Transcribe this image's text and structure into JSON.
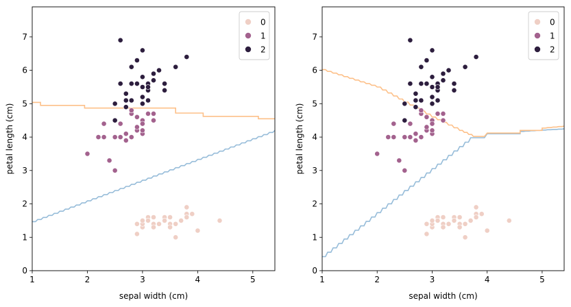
{
  "chart_data": [
    {
      "type": "scatter",
      "xlabel": "sepal width (cm)",
      "ylabel": "petal length (cm)",
      "xlim": [
        1,
        5.4
      ],
      "ylim": [
        0,
        7.9
      ],
      "xticks": [
        "1",
        "2",
        "3",
        "4",
        "5"
      ],
      "yticks": [
        "0",
        "1",
        "2",
        "3",
        "4",
        "5",
        "6",
        "7"
      ],
      "legend": {
        "placement": "top-right",
        "entries": [
          "0",
          "1",
          "2"
        ]
      },
      "colors": [
        "#efcfc5",
        "#a3628e",
        "#2d1e3e"
      ],
      "series": [
        {
          "name": "0",
          "points": [
            [
              2.9,
              1.1
            ],
            [
              2.9,
              1.4
            ],
            [
              3.0,
              1.3
            ],
            [
              3.0,
              1.4
            ],
            [
              3.0,
              1.5
            ],
            [
              3.1,
              1.6
            ],
            [
              3.1,
              1.5
            ],
            [
              3.2,
              1.6
            ],
            [
              3.2,
              1.4
            ],
            [
              3.2,
              1.3
            ],
            [
              3.3,
              1.4
            ],
            [
              3.4,
              1.6
            ],
            [
              3.4,
              1.5
            ],
            [
              3.5,
              1.6
            ],
            [
              3.5,
              1.4
            ],
            [
              3.5,
              1.3
            ],
            [
              3.6,
              1.0
            ],
            [
              3.6,
              1.4
            ],
            [
              3.7,
              1.5
            ],
            [
              3.8,
              1.9
            ],
            [
              3.8,
              1.7
            ],
            [
              3.8,
              1.6
            ],
            [
              3.9,
              1.7
            ],
            [
              4.0,
              1.2
            ],
            [
              4.4,
              1.5
            ]
          ]
        },
        {
          "name": "1",
          "points": [
            [
              2.0,
              3.5
            ],
            [
              2.2,
              4.0
            ],
            [
              2.3,
              4.0
            ],
            [
              2.3,
              4.4
            ],
            [
              2.4,
              3.3
            ],
            [
              2.5,
              3.0
            ],
            [
              2.5,
              4.0
            ],
            [
              2.6,
              4.0
            ],
            [
              2.6,
              4.4
            ],
            [
              2.7,
              4.1
            ],
            [
              2.7,
              3.9
            ],
            [
              2.8,
              4.0
            ],
            [
              2.8,
              4.7
            ],
            [
              2.8,
              4.8
            ],
            [
              2.9,
              4.2
            ],
            [
              2.9,
              4.3
            ],
            [
              2.9,
              4.6
            ],
            [
              3.0,
              4.1
            ],
            [
              3.0,
              4.2
            ],
            [
              3.0,
              4.5
            ],
            [
              3.0,
              4.4
            ],
            [
              3.1,
              4.7
            ],
            [
              3.2,
              4.5
            ],
            [
              3.2,
              4.7
            ]
          ]
        },
        {
          "name": "2",
          "points": [
            [
              2.5,
              5.0
            ],
            [
              2.5,
              4.5
            ],
            [
              2.6,
              5.6
            ],
            [
              2.6,
              6.9
            ],
            [
              2.7,
              5.1
            ],
            [
              2.7,
              5.3
            ],
            [
              2.7,
              4.9
            ],
            [
              2.8,
              5.6
            ],
            [
              2.8,
              6.1
            ],
            [
              2.8,
              5.1
            ],
            [
              2.9,
              5.6
            ],
            [
              2.9,
              6.3
            ],
            [
              3.0,
              5.5
            ],
            [
              3.0,
              5.8
            ],
            [
              3.0,
              5.2
            ],
            [
              3.0,
              6.6
            ],
            [
              3.0,
              5.0
            ],
            [
              3.1,
              5.6
            ],
            [
              3.1,
              5.4
            ],
            [
              3.1,
              5.5
            ],
            [
              3.1,
              5.1
            ],
            [
              3.2,
              5.7
            ],
            [
              3.2,
              5.9
            ],
            [
              3.3,
              6.0
            ],
            [
              3.4,
              5.4
            ],
            [
              3.4,
              5.6
            ],
            [
              3.6,
              6.1
            ],
            [
              3.8,
              6.4
            ]
          ]
        }
      ],
      "boundaries": [
        {
          "color": "#96bcd9",
          "points": [
            [
              1.0,
              1.47
            ],
            [
              5.4,
              4.2
            ]
          ],
          "stepped": true
        },
        {
          "color": "#fdc089",
          "points": [
            [
              1.0,
              5.04
            ],
            [
              1.15,
              5.04
            ],
            [
              1.15,
              4.95
            ],
            [
              1.95,
              4.95
            ],
            [
              1.95,
              4.87
            ],
            [
              3.6,
              4.87
            ],
            [
              3.6,
              4.72
            ],
            [
              4.1,
              4.72
            ],
            [
              4.1,
              4.62
            ],
            [
              5.1,
              4.62
            ],
            [
              5.1,
              4.55
            ],
            [
              5.4,
              4.55
            ]
          ],
          "stepped": false
        }
      ]
    },
    {
      "type": "scatter",
      "xlabel": "sepal width (cm)",
      "ylabel": "petal length (cm)",
      "xlim": [
        1,
        5.4
      ],
      "ylim": [
        0,
        7.9
      ],
      "xticks": [
        "1",
        "2",
        "3",
        "4",
        "5"
      ],
      "yticks": [
        "0",
        "1",
        "2",
        "3",
        "4",
        "5",
        "6",
        "7"
      ],
      "legend": {
        "placement": "top-right",
        "entries": [
          "0",
          "1",
          "2"
        ]
      },
      "colors": [
        "#efcfc5",
        "#a3628e",
        "#2d1e3e"
      ],
      "series": [
        {
          "name": "0",
          "points": [
            [
              2.9,
              1.1
            ],
            [
              2.9,
              1.4
            ],
            [
              3.0,
              1.3
            ],
            [
              3.0,
              1.4
            ],
            [
              3.0,
              1.5
            ],
            [
              3.1,
              1.6
            ],
            [
              3.1,
              1.5
            ],
            [
              3.2,
              1.6
            ],
            [
              3.2,
              1.4
            ],
            [
              3.2,
              1.3
            ],
            [
              3.3,
              1.4
            ],
            [
              3.4,
              1.6
            ],
            [
              3.4,
              1.5
            ],
            [
              3.5,
              1.6
            ],
            [
              3.5,
              1.4
            ],
            [
              3.5,
              1.3
            ],
            [
              3.6,
              1.0
            ],
            [
              3.6,
              1.4
            ],
            [
              3.7,
              1.5
            ],
            [
              3.8,
              1.9
            ],
            [
              3.8,
              1.7
            ],
            [
              3.8,
              1.6
            ],
            [
              3.9,
              1.7
            ],
            [
              4.0,
              1.2
            ],
            [
              4.4,
              1.5
            ]
          ]
        },
        {
          "name": "1",
          "points": [
            [
              2.0,
              3.5
            ],
            [
              2.2,
              4.0
            ],
            [
              2.3,
              4.0
            ],
            [
              2.3,
              4.4
            ],
            [
              2.4,
              3.3
            ],
            [
              2.5,
              3.0
            ],
            [
              2.5,
              4.0
            ],
            [
              2.6,
              4.0
            ],
            [
              2.6,
              4.4
            ],
            [
              2.7,
              4.1
            ],
            [
              2.7,
              3.9
            ],
            [
              2.8,
              4.0
            ],
            [
              2.8,
              4.7
            ],
            [
              2.8,
              4.8
            ],
            [
              2.9,
              4.2
            ],
            [
              2.9,
              4.3
            ],
            [
              2.9,
              4.6
            ],
            [
              3.0,
              4.1
            ],
            [
              3.0,
              4.2
            ],
            [
              3.0,
              4.5
            ],
            [
              3.0,
              4.4
            ],
            [
              3.1,
              4.7
            ],
            [
              3.2,
              4.5
            ],
            [
              3.2,
              4.7
            ]
          ]
        },
        {
          "name": "2",
          "points": [
            [
              2.5,
              5.0
            ],
            [
              2.5,
              4.5
            ],
            [
              2.6,
              5.6
            ],
            [
              2.6,
              6.9
            ],
            [
              2.7,
              5.1
            ],
            [
              2.7,
              5.3
            ],
            [
              2.7,
              4.9
            ],
            [
              2.8,
              5.6
            ],
            [
              2.8,
              6.1
            ],
            [
              2.8,
              5.1
            ],
            [
              2.9,
              5.6
            ],
            [
              2.9,
              6.3
            ],
            [
              3.0,
              5.5
            ],
            [
              3.0,
              5.8
            ],
            [
              3.0,
              5.2
            ],
            [
              3.0,
              6.6
            ],
            [
              3.0,
              5.0
            ],
            [
              3.1,
              5.6
            ],
            [
              3.1,
              5.4
            ],
            [
              3.1,
              5.5
            ],
            [
              3.1,
              5.1
            ],
            [
              3.2,
              5.7
            ],
            [
              3.2,
              5.9
            ],
            [
              3.3,
              6.0
            ],
            [
              3.4,
              5.4
            ],
            [
              3.4,
              5.6
            ],
            [
              3.6,
              6.1
            ],
            [
              3.8,
              6.4
            ]
          ]
        }
      ],
      "boundaries": [
        {
          "color": "#96bcd9",
          "points": [
            [
              1.0,
              0.42
            ],
            [
              3.7,
              3.98
            ],
            [
              3.95,
              3.98
            ],
            [
              4.0,
              4.1
            ],
            [
              4.6,
              4.1
            ],
            [
              4.6,
              4.17
            ],
            [
              5.4,
              4.25
            ]
          ],
          "stepped": true
        },
        {
          "color": "#fdc089",
          "points": [
            [
              1.0,
              6.02
            ],
            [
              2.0,
              5.5
            ],
            [
              3.0,
              4.6
            ],
            [
              3.5,
              4.2
            ],
            [
              3.75,
              4.02
            ],
            [
              3.95,
              4.02
            ],
            [
              4.0,
              4.12
            ],
            [
              4.6,
              4.12
            ],
            [
              4.6,
              4.2
            ],
            [
              5.0,
              4.2
            ],
            [
              5.0,
              4.27
            ],
            [
              5.4,
              4.33
            ]
          ],
          "stepped": true
        }
      ]
    }
  ]
}
